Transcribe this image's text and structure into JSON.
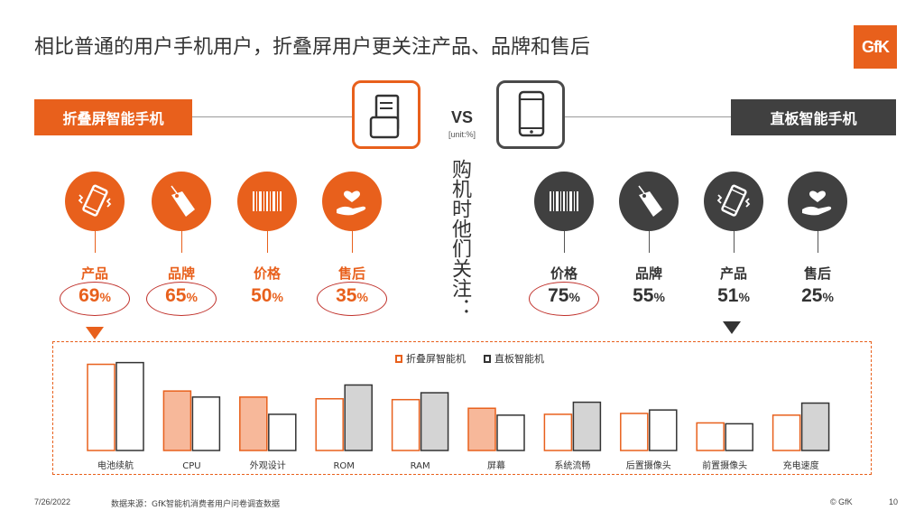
{
  "title": "相比普通的用户手机用户，折叠屏用户更关注产品、品牌和售后",
  "logo": "GfK",
  "left_banner": "折叠屏智能手机",
  "right_banner": "直板智能手机",
  "vs": "VS",
  "unit": "[unit:%]",
  "vertical_text": "购机时他们关注：",
  "foldable": [
    {
      "label": "产品",
      "value": "69",
      "unit": "%",
      "icon": "vibrating-phone-icon",
      "circled": true
    },
    {
      "label": "品牌",
      "value": "65",
      "unit": "%",
      "icon": "price-tag-icon",
      "circled": true
    },
    {
      "label": "价格",
      "value": "50",
      "unit": "%",
      "icon": "barcode-icon",
      "circled": false
    },
    {
      "label": "售后",
      "value": "35",
      "unit": "%",
      "icon": "heart-hand-icon",
      "circled": true
    }
  ],
  "bar_phone": [
    {
      "label": "价格",
      "value": "75",
      "unit": "%",
      "icon": "barcode-icon",
      "circled": true
    },
    {
      "label": "品牌",
      "value": "55",
      "unit": "%",
      "icon": "price-tag-icon",
      "circled": false
    },
    {
      "label": "产品",
      "value": "51",
      "unit": "%",
      "icon": "vibrating-phone-icon",
      "circled": false
    },
    {
      "label": "售后",
      "value": "25",
      "unit": "%",
      "icon": "heart-hand-icon",
      "circled": false
    }
  ],
  "colors": {
    "accent": "#e8601c",
    "dark": "#404040",
    "bar_fill_highlight": "#f7b89a",
    "bar_fill_gray": "#d4d4d4"
  },
  "chart_data": {
    "type": "bar",
    "categories": [
      "电池续航",
      "CPU",
      "外观设计",
      "ROM",
      "RAM",
      "屏幕",
      "系统流畅",
      "后置摄像头",
      "前置摄像头",
      "充电速度"
    ],
    "series": [
      {
        "name": "折叠屏智能机",
        "values": [
          100,
          69,
          62,
          60,
          59,
          49,
          42,
          43,
          32,
          41
        ],
        "highlight": [
          false,
          true,
          true,
          false,
          false,
          true,
          false,
          false,
          false,
          false
        ]
      },
      {
        "name": "直板智能机",
        "values": [
          102,
          62,
          42,
          76,
          67,
          41,
          56,
          47,
          31,
          55
        ],
        "highlight": [
          false,
          false,
          false,
          true,
          true,
          false,
          true,
          false,
          false,
          true
        ]
      }
    ],
    "legend": "top-center",
    "grid": false,
    "ylim": [
      0,
      110
    ]
  },
  "footer": {
    "date": "7/26/2022",
    "source": "数据来源：GfK智能机消费者用户问卷调查数据",
    "copyright": "© GfK",
    "page": "10"
  }
}
